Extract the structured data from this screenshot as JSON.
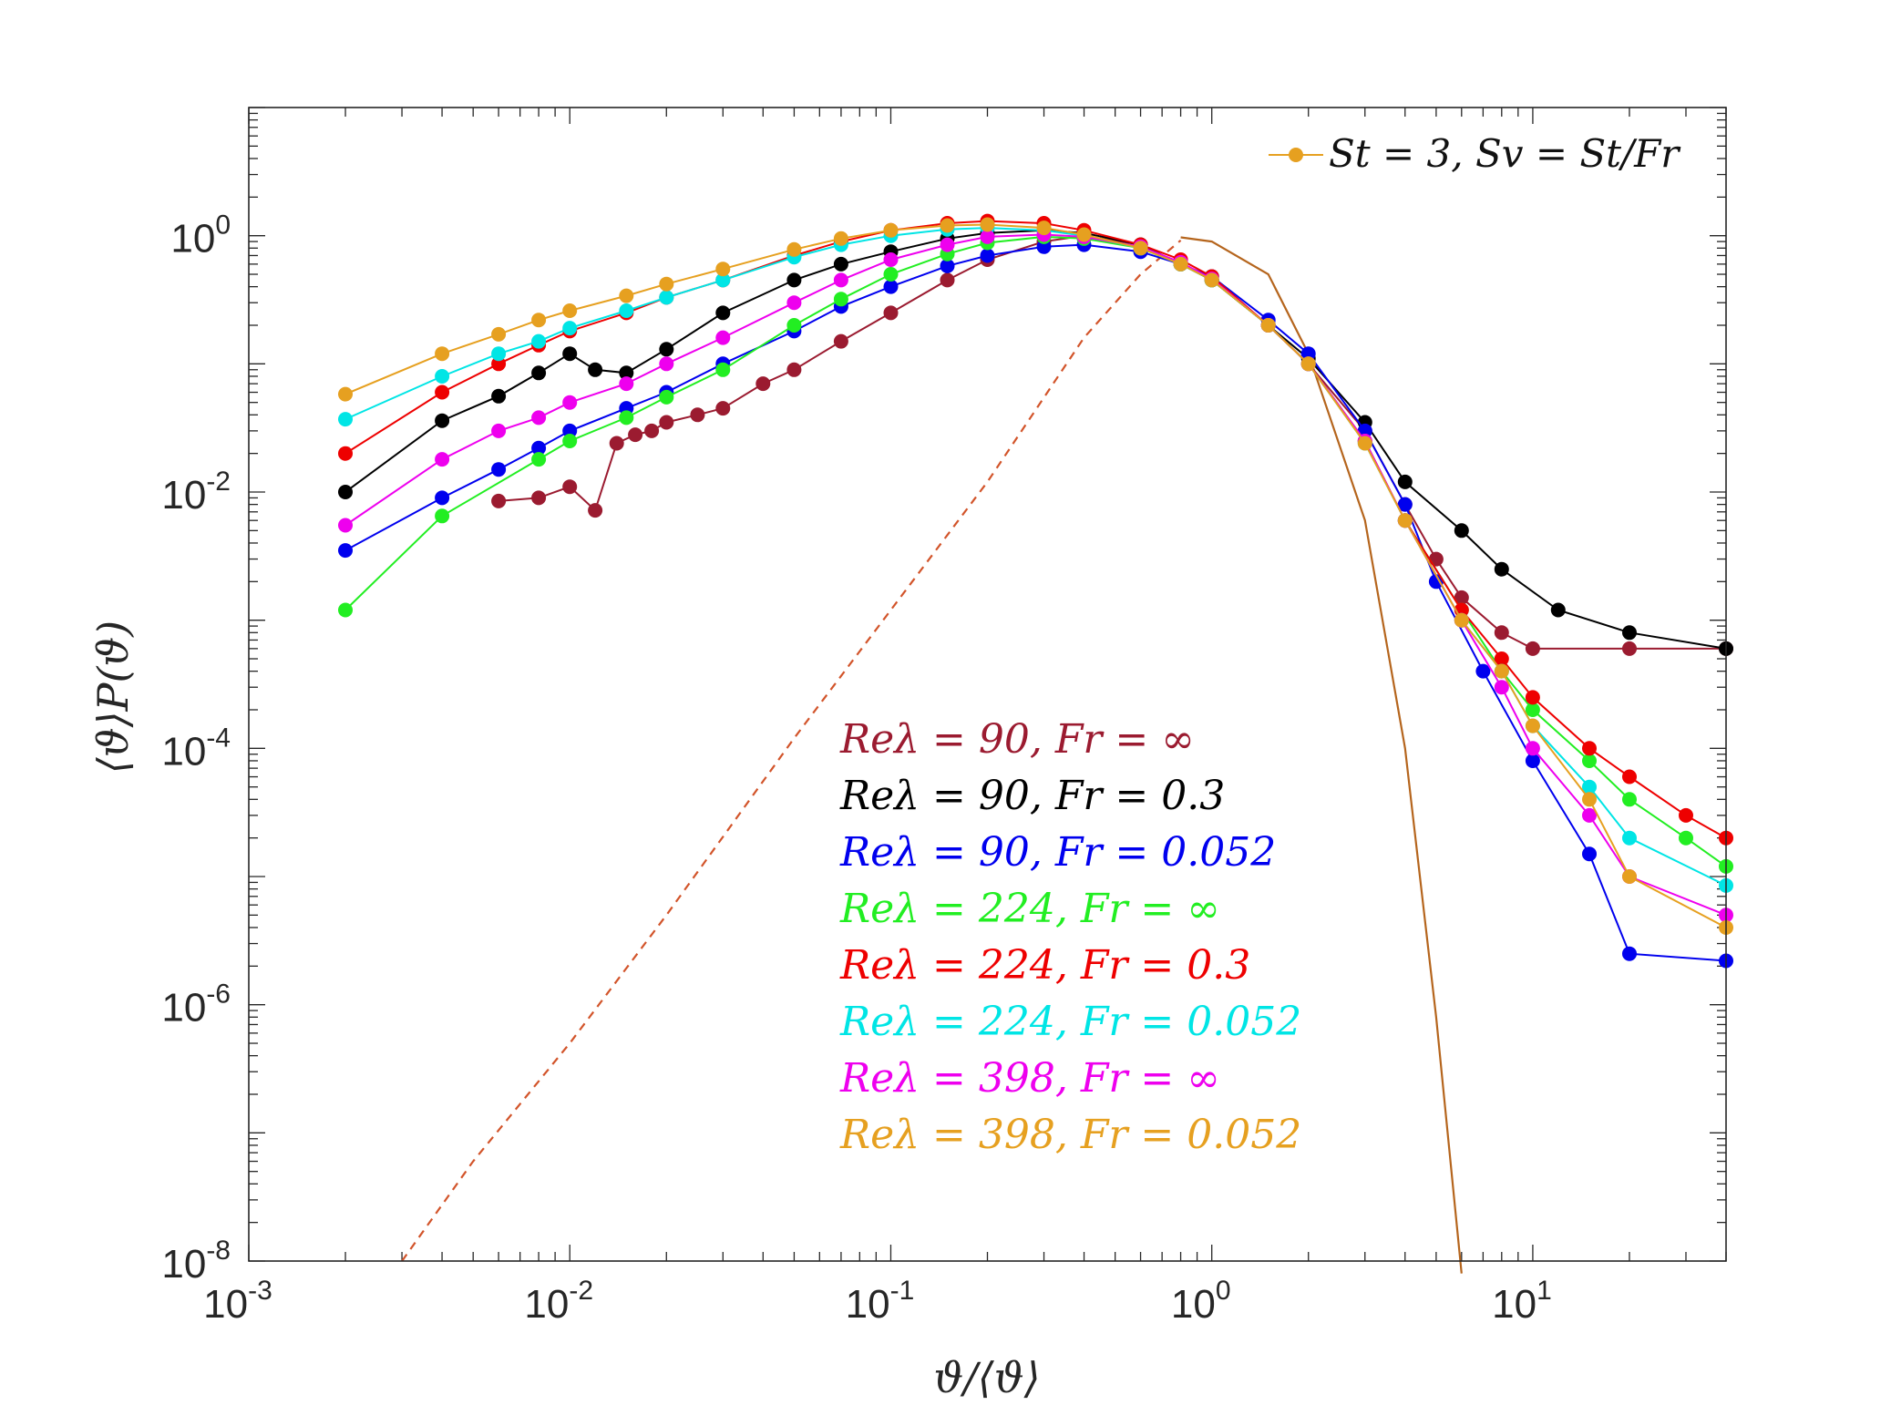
{
  "chart_data": {
    "type": "scatter",
    "title": "",
    "xlabel": "ϑ/⟨ϑ⟩",
    "ylabel": "⟨ϑ⟩P(ϑ)",
    "xscale": "log",
    "yscale": "log",
    "xlim": [
      0.001,
      40
    ],
    "ylim": [
      1e-08,
      10
    ],
    "x_ticks": [
      {
        "value": 0.001,
        "base": "10",
        "exp": "-3"
      },
      {
        "value": 0.01,
        "base": "10",
        "exp": "-2"
      },
      {
        "value": 0.1,
        "base": "10",
        "exp": "-1"
      },
      {
        "value": 1,
        "base": "10",
        "exp": "0"
      },
      {
        "value": 10,
        "base": "10",
        "exp": "1"
      }
    ],
    "y_ticks": [
      {
        "value": 1e-08,
        "base": "10",
        "exp": "-8"
      },
      {
        "value": 1e-06,
        "base": "10",
        "exp": "-6"
      },
      {
        "value": 0.0001,
        "base": "10",
        "exp": "-4"
      },
      {
        "value": 0.01,
        "base": "10",
        "exp": "-2"
      },
      {
        "value": 1,
        "base": "10",
        "exp": "0"
      }
    ],
    "legend_position": "top-right",
    "top_legend": {
      "label": "St = 3, Sv = St/Fr",
      "color": "#e6a020"
    },
    "series": [
      {
        "name": "Reλ = 90, Fr = ∞",
        "color": "#9b1b30",
        "points": [
          [
            0.006,
            0.0085
          ],
          [
            0.008,
            0.009
          ],
          [
            0.01,
            0.011
          ],
          [
            0.012,
            0.0072
          ],
          [
            0.014,
            0.024
          ],
          [
            0.016,
            0.028
          ],
          [
            0.018,
            0.03
          ],
          [
            0.02,
            0.035
          ],
          [
            0.025,
            0.04
          ],
          [
            0.03,
            0.045
          ],
          [
            0.04,
            0.07
          ],
          [
            0.05,
            0.09
          ],
          [
            0.07,
            0.15
          ],
          [
            0.1,
            0.25
          ],
          [
            0.15,
            0.45
          ],
          [
            0.2,
            0.65
          ],
          [
            0.3,
            0.9
          ],
          [
            0.4,
            1.0
          ],
          [
            0.6,
            0.85
          ],
          [
            0.8,
            0.6
          ],
          [
            1.0,
            0.45
          ],
          [
            1.5,
            0.2
          ],
          [
            2.0,
            0.1
          ],
          [
            3.0,
            0.03
          ],
          [
            4.0,
            0.008
          ],
          [
            5.0,
            0.003
          ],
          [
            6.0,
            0.0015
          ],
          [
            8.0,
            0.0008
          ],
          [
            10,
            0.0006
          ],
          [
            20,
            0.0006
          ],
          [
            40,
            0.0006
          ]
        ]
      },
      {
        "name": "Reλ = 90, Fr = 0.3",
        "color": "#000000",
        "points": [
          [
            0.002,
            0.01
          ],
          [
            0.004,
            0.036
          ],
          [
            0.006,
            0.056
          ],
          [
            0.008,
            0.085
          ],
          [
            0.01,
            0.12
          ],
          [
            0.012,
            0.09
          ],
          [
            0.015,
            0.085
          ],
          [
            0.02,
            0.13
          ],
          [
            0.03,
            0.25
          ],
          [
            0.05,
            0.45
          ],
          [
            0.07,
            0.6
          ],
          [
            0.1,
            0.75
          ],
          [
            0.15,
            0.95
          ],
          [
            0.2,
            1.05
          ],
          [
            0.3,
            1.1
          ],
          [
            0.4,
            1.05
          ],
          [
            0.6,
            0.85
          ],
          [
            0.8,
            0.6
          ],
          [
            1.0,
            0.45
          ],
          [
            1.5,
            0.2
          ],
          [
            2.0,
            0.11
          ],
          [
            3.0,
            0.035
          ],
          [
            4.0,
            0.012
          ],
          [
            6.0,
            0.005
          ],
          [
            8.0,
            0.0025
          ],
          [
            12,
            0.0012
          ],
          [
            20,
            0.0008
          ],
          [
            40,
            0.0006
          ]
        ]
      },
      {
        "name": "Reλ = 90, Fr = 0.052",
        "color": "#0000ee",
        "points": [
          [
            0.002,
            0.0035
          ],
          [
            0.004,
            0.009
          ],
          [
            0.006,
            0.015
          ],
          [
            0.008,
            0.022
          ],
          [
            0.01,
            0.03
          ],
          [
            0.015,
            0.045
          ],
          [
            0.02,
            0.06
          ],
          [
            0.03,
            0.1
          ],
          [
            0.05,
            0.18
          ],
          [
            0.07,
            0.28
          ],
          [
            0.1,
            0.4
          ],
          [
            0.15,
            0.58
          ],
          [
            0.2,
            0.7
          ],
          [
            0.3,
            0.82
          ],
          [
            0.4,
            0.85
          ],
          [
            0.6,
            0.75
          ],
          [
            0.8,
            0.6
          ],
          [
            1.0,
            0.48
          ],
          [
            1.5,
            0.22
          ],
          [
            2.0,
            0.12
          ],
          [
            3.0,
            0.03
          ],
          [
            4.0,
            0.008
          ],
          [
            5.0,
            0.002
          ],
          [
            7.0,
            0.0004
          ],
          [
            10,
            8e-05
          ],
          [
            15,
            1.5e-05
          ],
          [
            20,
            2.5e-06
          ],
          [
            40,
            2.2e-06
          ]
        ]
      },
      {
        "name": "Reλ = 224, Fr = ∞",
        "color": "#22ee22",
        "points": [
          [
            0.002,
            0.0012
          ],
          [
            0.004,
            0.0065
          ],
          [
            0.008,
            0.018
          ],
          [
            0.01,
            0.025
          ],
          [
            0.015,
            0.038
          ],
          [
            0.02,
            0.055
          ],
          [
            0.03,
            0.09
          ],
          [
            0.05,
            0.2
          ],
          [
            0.07,
            0.32
          ],
          [
            0.1,
            0.5
          ],
          [
            0.15,
            0.72
          ],
          [
            0.2,
            0.88
          ],
          [
            0.3,
            0.98
          ],
          [
            0.4,
            0.95
          ],
          [
            0.6,
            0.8
          ],
          [
            0.8,
            0.6
          ],
          [
            1.0,
            0.45
          ],
          [
            1.5,
            0.2
          ],
          [
            2.0,
            0.1
          ],
          [
            3.0,
            0.025
          ],
          [
            4.0,
            0.006
          ],
          [
            6.0,
            0.0012
          ],
          [
            8.0,
            0.0004
          ],
          [
            10,
            0.0002
          ],
          [
            15,
            8e-05
          ],
          [
            20,
            4e-05
          ],
          [
            30,
            2e-05
          ],
          [
            40,
            1.2e-05
          ]
        ]
      },
      {
        "name": "Reλ = 224, Fr = 0.3",
        "color": "#ee0000",
        "points": [
          [
            0.002,
            0.02
          ],
          [
            0.004,
            0.06
          ],
          [
            0.006,
            0.1
          ],
          [
            0.008,
            0.14
          ],
          [
            0.01,
            0.18
          ],
          [
            0.015,
            0.25
          ],
          [
            0.02,
            0.33
          ],
          [
            0.03,
            0.45
          ],
          [
            0.05,
            0.7
          ],
          [
            0.07,
            0.9
          ],
          [
            0.1,
            1.1
          ],
          [
            0.15,
            1.25
          ],
          [
            0.2,
            1.3
          ],
          [
            0.3,
            1.25
          ],
          [
            0.4,
            1.1
          ],
          [
            0.6,
            0.85
          ],
          [
            0.8,
            0.65
          ],
          [
            1.0,
            0.48
          ],
          [
            1.5,
            0.2
          ],
          [
            2.0,
            0.1
          ],
          [
            3.0,
            0.025
          ],
          [
            4.0,
            0.006
          ],
          [
            6.0,
            0.0012
          ],
          [
            8.0,
            0.0005
          ],
          [
            10,
            0.00025
          ],
          [
            15,
            0.0001
          ],
          [
            20,
            6e-05
          ],
          [
            30,
            3e-05
          ],
          [
            40,
            2e-05
          ]
        ]
      },
      {
        "name": "Reλ = 224, Fr = 0.052",
        "color": "#00e5e5",
        "points": [
          [
            0.002,
            0.037
          ],
          [
            0.004,
            0.08
          ],
          [
            0.006,
            0.12
          ],
          [
            0.008,
            0.15
          ],
          [
            0.01,
            0.19
          ],
          [
            0.015,
            0.26
          ],
          [
            0.02,
            0.33
          ],
          [
            0.03,
            0.45
          ],
          [
            0.05,
            0.68
          ],
          [
            0.07,
            0.85
          ],
          [
            0.1,
            1.0
          ],
          [
            0.15,
            1.12
          ],
          [
            0.2,
            1.15
          ],
          [
            0.3,
            1.1
          ],
          [
            0.4,
            1.0
          ],
          [
            0.6,
            0.8
          ],
          [
            0.8,
            0.6
          ],
          [
            1.0,
            0.45
          ],
          [
            1.5,
            0.2
          ],
          [
            2.0,
            0.1
          ],
          [
            3.0,
            0.024
          ],
          [
            4.0,
            0.006
          ],
          [
            6.0,
            0.001
          ],
          [
            8.0,
            0.0004
          ],
          [
            10,
            0.00015
          ],
          [
            15,
            5e-05
          ],
          [
            20,
            2e-05
          ],
          [
            40,
            8.5e-06
          ]
        ]
      },
      {
        "name": "Reλ = 398, Fr = ∞",
        "color": "#ee00ee",
        "points": [
          [
            0.002,
            0.0055
          ],
          [
            0.004,
            0.018
          ],
          [
            0.006,
            0.03
          ],
          [
            0.008,
            0.038
          ],
          [
            0.01,
            0.05
          ],
          [
            0.015,
            0.07
          ],
          [
            0.02,
            0.1
          ],
          [
            0.03,
            0.16
          ],
          [
            0.05,
            0.3
          ],
          [
            0.07,
            0.45
          ],
          [
            0.1,
            0.65
          ],
          [
            0.15,
            0.85
          ],
          [
            0.2,
            0.98
          ],
          [
            0.3,
            1.02
          ],
          [
            0.4,
            0.98
          ],
          [
            0.6,
            0.82
          ],
          [
            0.8,
            0.62
          ],
          [
            1.0,
            0.46
          ],
          [
            1.5,
            0.2
          ],
          [
            2.0,
            0.1
          ],
          [
            3.0,
            0.025
          ],
          [
            4.0,
            0.006
          ],
          [
            6.0,
            0.001
          ],
          [
            8.0,
            0.0003
          ],
          [
            10,
            0.0001
          ],
          [
            15,
            3e-05
          ],
          [
            20,
            1e-05
          ],
          [
            40,
            5e-06
          ]
        ]
      },
      {
        "name": "Reλ = 398, Fr = 0.052",
        "color": "#e6a020",
        "points": [
          [
            0.002,
            0.058
          ],
          [
            0.004,
            0.12
          ],
          [
            0.006,
            0.17
          ],
          [
            0.008,
            0.22
          ],
          [
            0.01,
            0.26
          ],
          [
            0.015,
            0.34
          ],
          [
            0.02,
            0.42
          ],
          [
            0.03,
            0.55
          ],
          [
            0.05,
            0.78
          ],
          [
            0.07,
            0.95
          ],
          [
            0.1,
            1.1
          ],
          [
            0.15,
            1.2
          ],
          [
            0.2,
            1.22
          ],
          [
            0.3,
            1.15
          ],
          [
            0.4,
            1.02
          ],
          [
            0.6,
            0.8
          ],
          [
            0.8,
            0.6
          ],
          [
            1.0,
            0.45
          ],
          [
            1.5,
            0.2
          ],
          [
            2.0,
            0.1
          ],
          [
            3.0,
            0.024
          ],
          [
            4.0,
            0.006
          ],
          [
            6.0,
            0.001
          ],
          [
            8.0,
            0.0004
          ],
          [
            10,
            0.00015
          ],
          [
            15,
            4e-05
          ],
          [
            20,
            1e-05
          ],
          [
            40,
            4e-06
          ]
        ]
      }
    ],
    "reference_curves": [
      {
        "name": "reference-dashed",
        "color": "#d2542a",
        "style": "dashed",
        "points": [
          [
            0.003,
            1e-08
          ],
          [
            0.005,
            6e-08
          ],
          [
            0.01,
            5e-07
          ],
          [
            0.02,
            5e-06
          ],
          [
            0.05,
            0.00012
          ],
          [
            0.1,
            0.0012
          ],
          [
            0.2,
            0.012
          ],
          [
            0.4,
            0.16
          ],
          [
            0.6,
            0.5
          ],
          [
            0.8,
            0.92
          ]
        ]
      },
      {
        "name": "reference-solid",
        "color": "#b5651d",
        "style": "solid",
        "points": [
          [
            0.8,
            0.97
          ],
          [
            1.0,
            0.9
          ],
          [
            1.5,
            0.5
          ],
          [
            2.0,
            0.12
          ],
          [
            3.0,
            0.006
          ],
          [
            4.0,
            0.0001
          ],
          [
            5.0,
            8e-07
          ],
          [
            6.0,
            8e-09
          ]
        ]
      }
    ]
  }
}
